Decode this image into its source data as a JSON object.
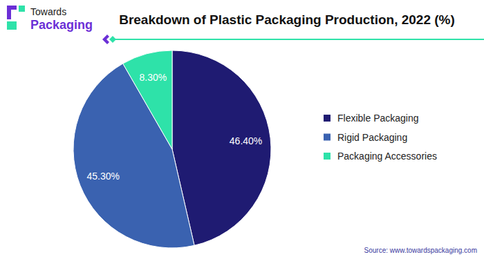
{
  "chart_data": {
    "type": "pie",
    "title": "Breakdown of Plastic Packaging Production, 2022 (%)",
    "categories": [
      "Flexible Packaging",
      "Rigid Packaging",
      "Packaging Accessories"
    ],
    "values": [
      46.4,
      45.3,
      8.3
    ],
    "value_labels": [
      "46.40%",
      "45.30%",
      "8.30%"
    ],
    "colors": [
      "#1f1b72",
      "#3a62b0",
      "#2ee2a9"
    ],
    "data_labels": true,
    "legend": "right",
    "annotations": [
      "Towards",
      "Packaging",
      "Source: www.towardspackaging.com"
    ]
  }
}
